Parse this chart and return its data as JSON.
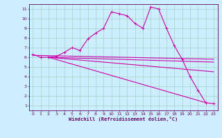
{
  "background_color": "#cceeff",
  "grid_color": "#99ccbb",
  "line_color": "#cc00aa",
  "marker": "+",
  "markersize": 3,
  "linewidth": 0.8,
  "xlabel": "Windchill (Refroidissement éolien,°C)",
  "xlim": [
    -0.5,
    23.5
  ],
  "ylim": [
    0.5,
    11.5
  ],
  "yticks": [
    1,
    2,
    3,
    4,
    5,
    6,
    7,
    8,
    9,
    10,
    11
  ],
  "xticks": [
    0,
    1,
    2,
    3,
    4,
    5,
    6,
    7,
    8,
    9,
    10,
    11,
    12,
    13,
    14,
    15,
    16,
    17,
    18,
    19,
    20,
    21,
    22,
    23
  ],
  "series1_x": [
    0,
    1,
    2,
    3,
    4,
    5,
    6,
    7,
    8,
    9,
    10,
    11,
    12,
    13,
    14,
    15,
    16,
    17,
    18,
    19,
    20,
    21,
    22,
    23
  ],
  "series1_y": [
    6.3,
    6.0,
    6.0,
    6.1,
    6.5,
    7.0,
    6.7,
    7.9,
    8.5,
    9.0,
    10.7,
    10.5,
    10.3,
    9.5,
    9.0,
    11.2,
    11.0,
    9.0,
    7.2,
    5.8,
    4.0,
    2.6,
    1.3,
    1.2
  ],
  "series2_x": [
    0,
    23
  ],
  "series2_y": [
    6.2,
    5.8
  ],
  "series3_x": [
    2,
    23
  ],
  "series3_y": [
    6.0,
    5.5
  ],
  "series4_x": [
    2,
    23
  ],
  "series4_y": [
    6.0,
    4.5
  ],
  "series5_x": [
    2,
    22
  ],
  "series5_y": [
    6.0,
    1.3
  ]
}
